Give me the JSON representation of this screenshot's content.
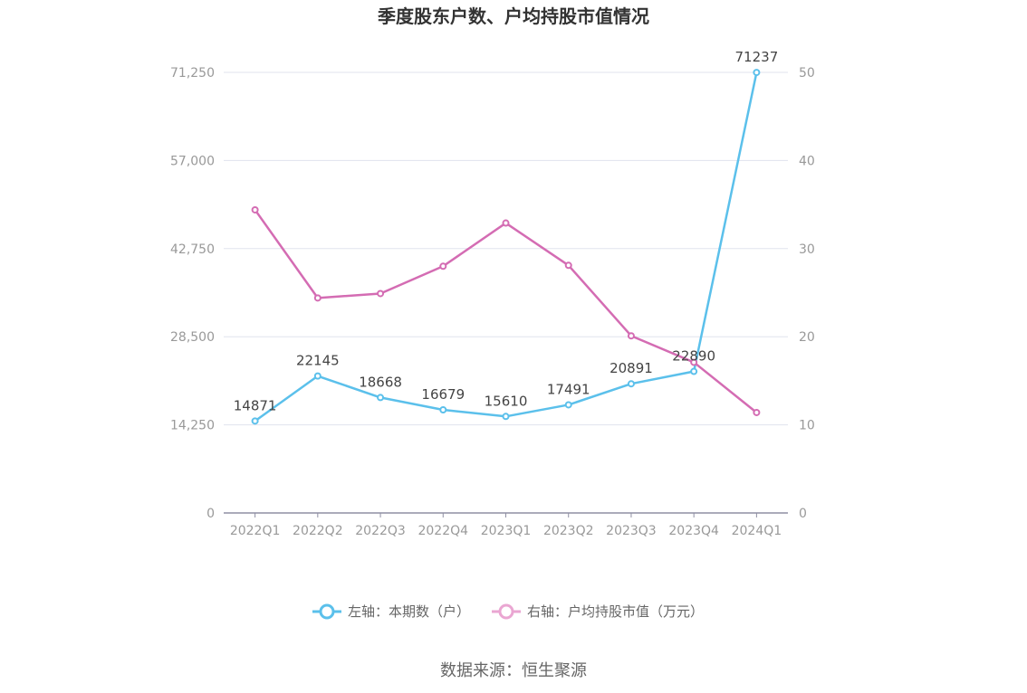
{
  "colors": {
    "left_series": "#5bc0eb",
    "right_series": "#d46cb3",
    "grid": "#e0e3ee",
    "axis": "#8f8fa3"
  },
  "chart_data": {
    "type": "line",
    "title": "季度股东户数、户均持股市值情况",
    "categories": [
      "2022Q1",
      "2022Q2",
      "2022Q3",
      "2022Q4",
      "2023Q1",
      "2023Q2",
      "2023Q3",
      "2023Q4",
      "2024Q1"
    ],
    "left_axis": {
      "ticks": [
        "0",
        "14,250",
        "28,500",
        "42,750",
        "57,000",
        "71,250"
      ],
      "ylim": [
        0,
        71250
      ]
    },
    "right_axis": {
      "ticks": [
        "0",
        "10",
        "20",
        "30",
        "40",
        "50"
      ],
      "ylim": [
        0,
        50
      ]
    },
    "series": [
      {
        "name": "左轴：本期数（户）",
        "axis": "left",
        "values": [
          14871,
          22145,
          18668,
          16679,
          15610,
          17491,
          20891,
          22890,
          71237
        ],
        "labels": [
          "14871",
          "22145",
          "18668",
          "16679",
          "15610",
          "17491",
          "20891",
          "22890",
          "71237"
        ]
      },
      {
        "name": "右轴：户均持股市值（万元）",
        "axis": "right",
        "values": [
          34.4,
          24.4,
          24.9,
          28.0,
          32.9,
          28.1,
          20.1,
          17.1,
          11.4
        ]
      }
    ],
    "grid": true,
    "legend_position": "bottom-center"
  },
  "footer": {
    "source": "数据来源：恒生聚源"
  }
}
